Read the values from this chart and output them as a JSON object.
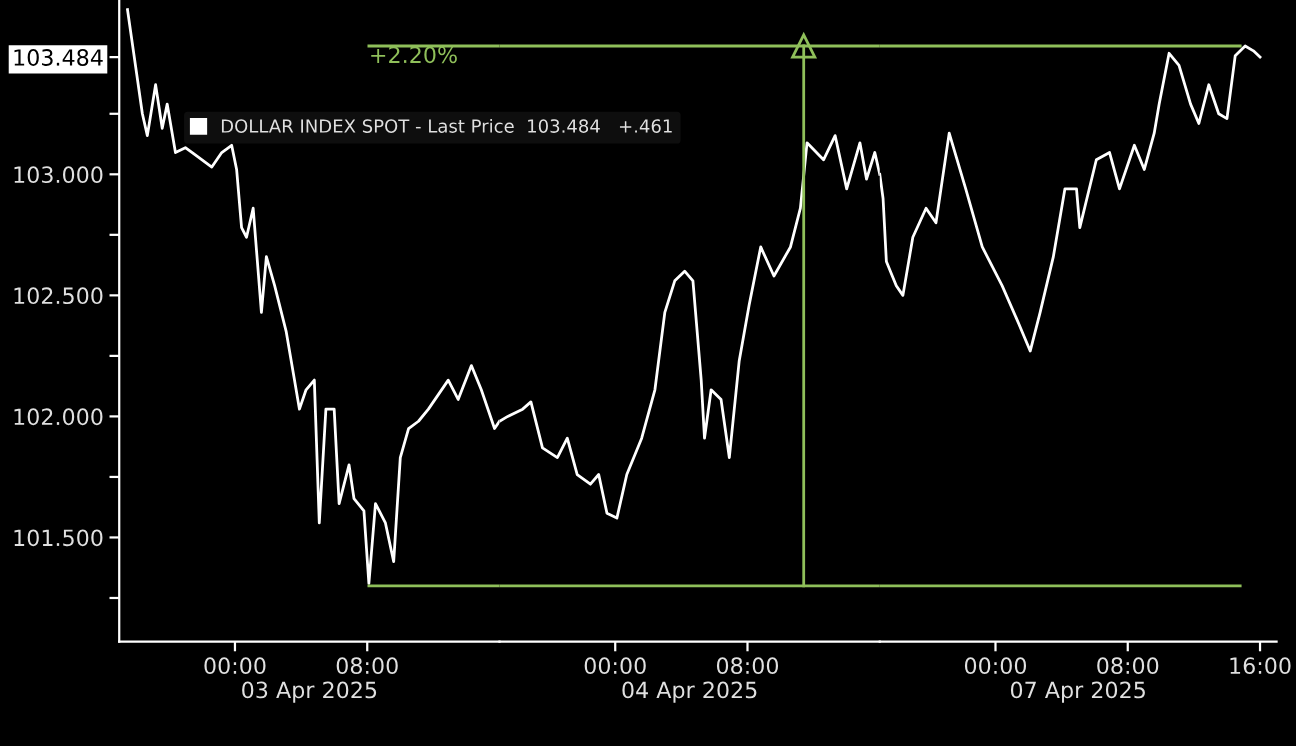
{
  "chart_data": [
    {
      "type": "line",
      "xlabel": "03 Apr 2025",
      "x": [
        -6.5,
        -5.6,
        -5.3,
        -4.8,
        -4.4,
        -4.1,
        -3.6,
        -3.0,
        -2.4,
        -1.4,
        -0.8,
        -0.2,
        0.1,
        0.4,
        0.7,
        1.1,
        1.6,
        1.9,
        2.4,
        3.1,
        3.6,
        3.9,
        4.3,
        4.8,
        5.1,
        5.5,
        6.0,
        6.3,
        6.9,
        7.2,
        7.8,
        8.1,
        8.5,
        9.1,
        9.6,
        10.0,
        10.5,
        11.1,
        11.7,
        12.3,
        12.9,
        13.5,
        14.3,
        14.9,
        15.7,
        16
      ],
      "series": [
        {
          "name": "DOLLAR INDEX SPOT - Last Price  103.484   +.461",
          "color": "#ffffff",
          "values": [
            103.68,
            103.25,
            103.16,
            103.37,
            103.19,
            103.29,
            103.09,
            103.11,
            103.08,
            103.03,
            103.09,
            103.12,
            103.02,
            102.78,
            102.74,
            102.86,
            102.43,
            102.66,
            102.54,
            102.35,
            102.15,
            102.03,
            102.11,
            102.15,
            101.56,
            102.03,
            102.03,
            101.64,
            101.8,
            101.66,
            101.61,
            101.31,
            101.64,
            101.56,
            101.4,
            101.83,
            101.95,
            101.98,
            102.03,
            102.09,
            102.15,
            102.07,
            102.21,
            102.11,
            101.95,
            101.98
          ]
        },
        {
          "color": "#8fbf5a",
          "x": [
            8.1,
            16
          ],
          "values": [
            103.53,
            103.53
          ]
        },
        {
          "color": "#8fbf5a",
          "x": [
            8.1,
            16
          ],
          "values": [
            101.3,
            101.3
          ]
        }
      ],
      "xlim": [
        -7,
        16
      ],
      "ylim": [
        101.07,
        103.72
      ],
      "xticks": [
        {
          "value": 0,
          "label": "00:00"
        },
        {
          "value": 8,
          "label": "08:00"
        }
      ],
      "yticks": [
        {
          "value": 101.25,
          "label": null
        },
        {
          "value": 101.5,
          "label": "101.500"
        },
        {
          "value": 101.75,
          "label": null
        },
        {
          "value": 102,
          "label": "102.000"
        },
        {
          "value": 102.25,
          "label": null
        },
        {
          "value": 102.5,
          "label": "102.500"
        },
        {
          "value": 102.75,
          "label": null
        },
        {
          "value": 103,
          "label": "103.000"
        },
        {
          "value": 103.25,
          "label": null
        },
        {
          "value": 103.484,
          "label": "103.484"
        }
      ],
      "annotations": [
        {
          "text": "+2.20%",
          "x": 8.1,
          "y": 103.53
        }
      ],
      "legend": "top right",
      "grid": false,
      "marker": "none",
      "line_style": "solid"
    },
    {
      "type": "line",
      "xlabel": "04 Apr 2025",
      "x": [
        -7,
        -6.5,
        -5.6,
        -5.1,
        -4.4,
        -3.5,
        -2.9,
        -2.3,
        -1.5,
        -1.0,
        -0.5,
        0.1,
        0.7,
        1.6,
        2.4,
        3.0,
        3.6,
        4.2,
        4.7,
        5.2,
        5.4,
        5.8,
        6.4,
        6.9,
        7.5,
        8.1,
        8.8,
        9.6,
        10.6,
        11.2,
        11.6,
        12.6,
        13.3,
        14.0,
        14.8,
        15.2,
        15.7,
        16
      ],
      "series": [
        {
          "color": "#ffffff",
          "values": [
            101.98,
            102.0,
            102.03,
            102.06,
            101.87,
            101.83,
            101.91,
            101.76,
            101.72,
            101.76,
            101.6,
            101.58,
            101.76,
            101.91,
            102.11,
            102.43,
            102.56,
            102.6,
            102.56,
            102.15,
            101.91,
            102.11,
            102.07,
            101.83,
            102.23,
            102.46,
            102.7,
            102.58,
            102.7,
            102.86,
            103.13,
            103.06,
            103.16,
            102.94,
            103.13,
            102.98,
            103.09,
            103.0
          ]
        },
        {
          "color": "#8fbf5a",
          "x": [
            -7,
            16
          ],
          "values": [
            103.53,
            103.53
          ]
        },
        {
          "color": "#8fbf5a",
          "x": [
            -7,
            16
          ],
          "values": [
            101.3,
            101.3
          ]
        },
        {
          "color": "#8fbf5a",
          "x": [
            11.4,
            11.4
          ],
          "values": [
            101.3,
            103.53
          ],
          "marker": "triangle"
        }
      ],
      "xlim": [
        -7,
        16
      ],
      "ylim": [
        101.07,
        103.72
      ],
      "xticks": [
        {
          "value": 0,
          "label": "00:00"
        },
        {
          "value": 8,
          "label": "08:00"
        }
      ],
      "tick_labels": "x",
      "grid": false,
      "marker": "none",
      "line_style": "solid"
    },
    {
      "type": "line",
      "xlabel": "07 Apr 2025",
      "x": [
        -7,
        -6.8,
        -6.6,
        -6.0,
        -5.6,
        -5.0,
        -4.2,
        -3.6,
        -2.8,
        -1.8,
        -0.8,
        0.4,
        1.3,
        2.1,
        2.7,
        3.5,
        4.2,
        4.9,
        5.1,
        6.1,
        6.9,
        7.5,
        8.4,
        9.0,
        9.6,
        9.9,
        10.5,
        11.1,
        11.8,
        12.3,
        12.9,
        13.5,
        14.0,
        14.5,
        15.1,
        15.6,
        16.0
      ],
      "series": [
        {
          "color": "#ffffff",
          "values": [
            103.0,
            102.9,
            102.64,
            102.54,
            102.5,
            102.74,
            102.86,
            102.8,
            103.17,
            102.94,
            102.7,
            102.54,
            102.4,
            102.27,
            102.43,
            102.66,
            102.94,
            102.94,
            102.78,
            103.06,
            103.09,
            102.94,
            103.12,
            103.02,
            103.17,
            103.29,
            103.5,
            103.45,
            103.29,
            103.21,
            103.37,
            103.25,
            103.23,
            103.49,
            103.53,
            103.51,
            103.484
          ]
        },
        {
          "color": "#8fbf5a",
          "x": [
            -7,
            14.8
          ],
          "values": [
            103.53,
            103.53
          ]
        },
        {
          "color": "#8fbf5a",
          "x": [
            -7,
            14.8
          ],
          "values": [
            101.3,
            101.3
          ]
        }
      ],
      "xlim": [
        -7,
        17
      ],
      "ylim": [
        101.07,
        103.72
      ],
      "xticks": [
        {
          "value": 0,
          "label": "00:00"
        },
        {
          "value": 8,
          "label": "08:00"
        },
        {
          "value": 16,
          "label": "16:00"
        }
      ],
      "tick_labels": "x",
      "grid": false,
      "marker": "none",
      "line_style": "solid"
    }
  ]
}
